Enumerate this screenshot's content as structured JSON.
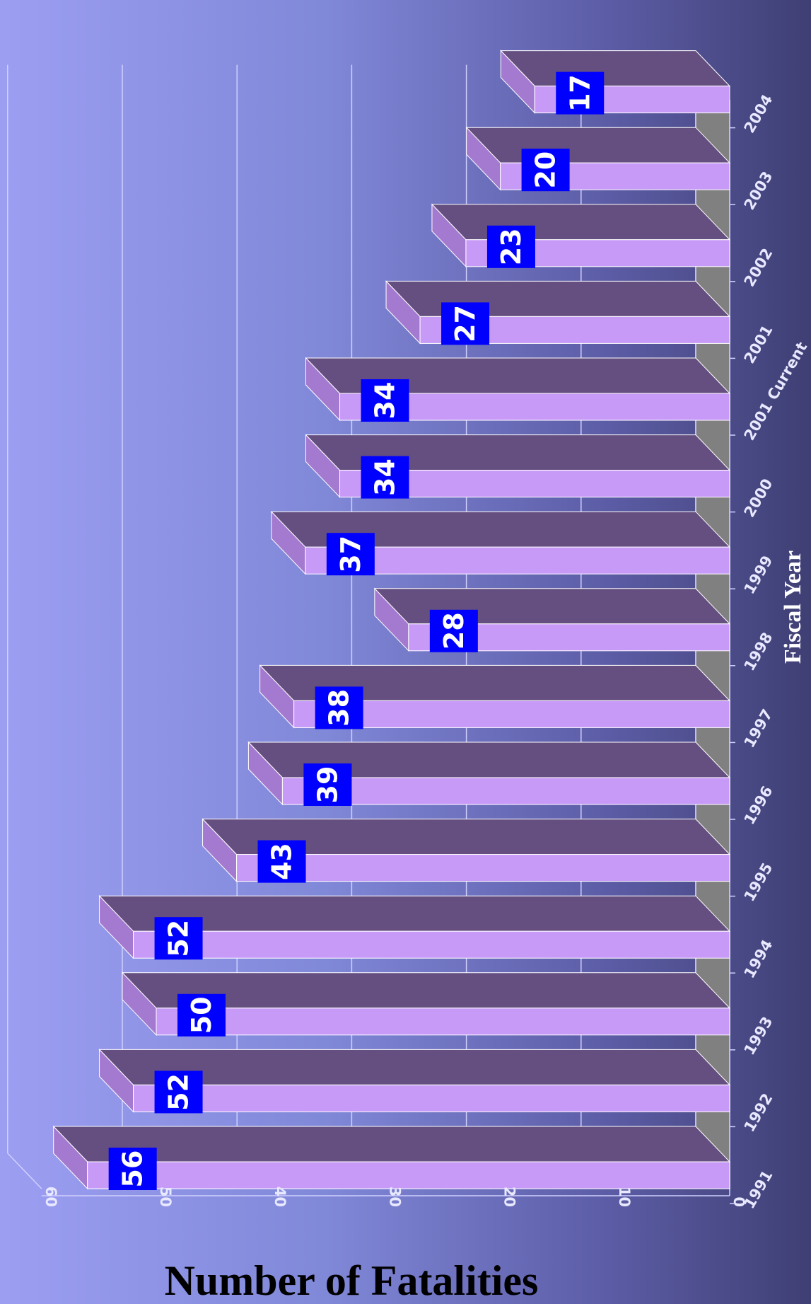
{
  "chart_data": {
    "type": "bar",
    "orientation": "rotated",
    "categories": [
      "1991",
      "1992",
      "1993",
      "1994",
      "1995",
      "1996",
      "1997",
      "1998",
      "1999",
      "2000",
      "2001 Current",
      "2001",
      "2002",
      "2003",
      "2004"
    ],
    "values": [
      56,
      52,
      50,
      52,
      43,
      39,
      38,
      28,
      37,
      34,
      34,
      27,
      23,
      20,
      17
    ],
    "value_labels": [
      "56",
      "52",
      "50",
      "52",
      "43",
      "39",
      "38",
      "28",
      "37",
      "34",
      "34",
      "27",
      "23",
      "20",
      "17"
    ],
    "xlabel": "Fiscal Year",
    "ylabel": "Number of Fatalities",
    "ylim": [
      0,
      60
    ],
    "yticks": [
      "0",
      "10",
      "20",
      "30",
      "40",
      "50",
      "60"
    ],
    "grid": true,
    "legend": "none"
  },
  "colors": {
    "bar_front": "#c89af8",
    "bar_top": "#654f80",
    "bar_end": "#a47ad0",
    "floor": "#808080",
    "label_bg": "#0000ff",
    "gridline": "#d0d0ff"
  }
}
